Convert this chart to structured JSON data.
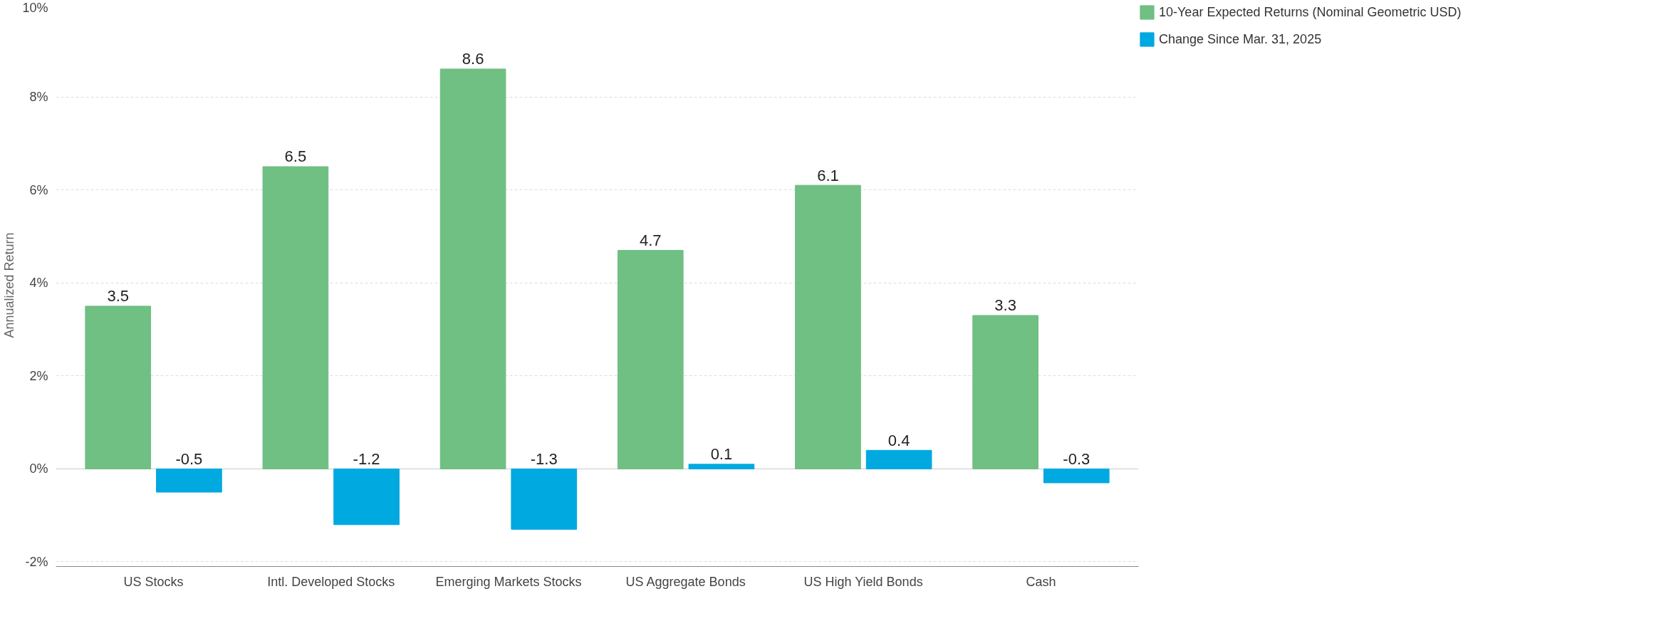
{
  "chart_data": {
    "type": "bar",
    "ylabel": "Annualized Return",
    "categories": [
      "US Stocks",
      "Intl. Developed Stocks",
      "Emerging Markets Stocks",
      "US Aggregate Bonds",
      "US High Yield Bonds",
      "Cash"
    ],
    "series": [
      {
        "name": "10-Year Expected Returns (Nominal Geometric USD)",
        "color": "#70bf83",
        "values": [
          3.5,
          6.5,
          8.6,
          4.7,
          6.1,
          3.3
        ]
      },
      {
        "name": "Change Since Mar. 31, 2025",
        "color": "#00a9e0",
        "values": [
          -0.5,
          -1.2,
          -1.3,
          0.1,
          0.4,
          -0.3
        ]
      }
    ],
    "ylim": [
      -2.1,
      10
    ],
    "yticks": [
      {
        "value": -2,
        "label": "-2%"
      },
      {
        "value": 0,
        "label": "0%"
      },
      {
        "value": 2,
        "label": "2%"
      },
      {
        "value": 4,
        "label": "4%"
      },
      {
        "value": 6,
        "label": "6%"
      },
      {
        "value": 8,
        "label": "8%"
      },
      {
        "value": 10,
        "label": "10%"
      }
    ],
    "grid": "y",
    "legend": "top right",
    "data_labels": true
  }
}
